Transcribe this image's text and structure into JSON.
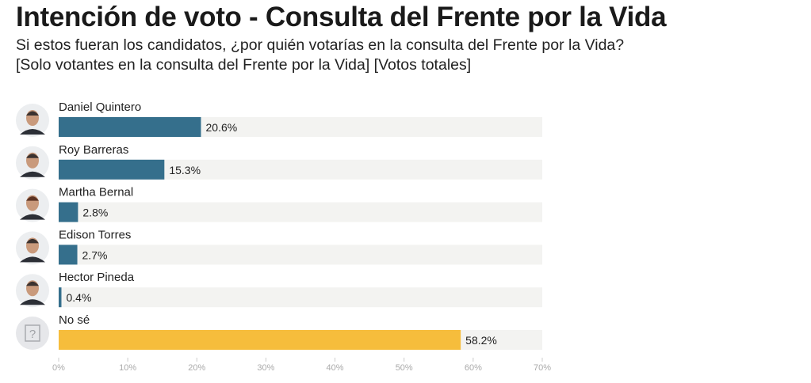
{
  "header": {
    "title": "Intención de voto - Consulta del Frente por la Vida",
    "subtitle_1": "Si estos fueran los candidatos, ¿por quién votarías en la consulta del Frente por la Vida?",
    "subtitle_2": "[Solo votantes en la consulta del Frente por la Vida] [Votos totales]"
  },
  "chart_data": {
    "type": "bar",
    "orientation": "horizontal",
    "title": "Intención de voto - Consulta del Frente por la Vida",
    "categories": [
      "Daniel Quintero",
      "Roy Barreras",
      "Martha Bernal",
      "Edison Torres",
      "Hector Pineda",
      "No sé"
    ],
    "values": [
      20.6,
      15.3,
      2.8,
      2.7,
      0.4,
      58.2
    ],
    "value_labels": [
      "20.6%",
      "15.3%",
      "2.8%",
      "2.7%",
      "0.4%",
      "58.2%"
    ],
    "colors": [
      "#356f8c",
      "#356f8c",
      "#356f8c",
      "#356f8c",
      "#356f8c",
      "#f6bd3c"
    ],
    "track_color": "#f3f3f1",
    "xlim": [
      0,
      70
    ],
    "xticks": [
      0,
      10,
      20,
      30,
      40,
      50,
      60,
      70
    ],
    "xtick_labels": [
      "0%",
      "10%",
      "20%",
      "30%",
      "40%",
      "50%",
      "60%",
      "70%"
    ],
    "xlabel": "",
    "ylabel": "",
    "unknown_icon": "?"
  }
}
